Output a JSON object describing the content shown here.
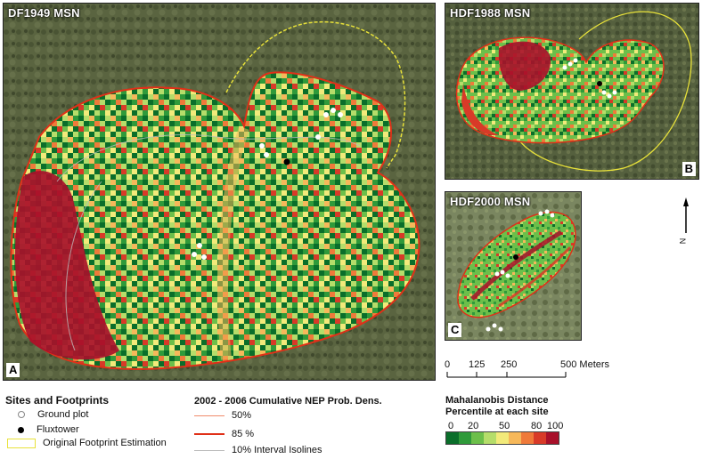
{
  "panels": {
    "a": {
      "title": "DF1949 MSN",
      "letter": "A"
    },
    "b": {
      "title": "HDF1988 MSN",
      "letter": "B"
    },
    "c": {
      "title": "HDF2000 MSN",
      "letter": "C"
    }
  },
  "north_label": "N",
  "scalebar": {
    "ticks": [
      "0",
      "125",
      "250",
      "500 Meters"
    ]
  },
  "legend_sites": {
    "title": "Sites and Footprints",
    "items": [
      "Ground plot",
      "Fluxtower",
      "Original Footprint Estimation"
    ]
  },
  "legend_nep": {
    "title": "2002 - 2006 Cumulative NEP Prob. Dens.",
    "items": [
      "50%",
      "85 %",
      "10% Interval Isolines"
    ]
  },
  "legend_mahal": {
    "title_line1": "Mahalanobis Distance",
    "title_line2": "Percentile at each site",
    "ticks": [
      "0",
      "20",
      "50",
      "80",
      "100"
    ],
    "colors": [
      "#0a6e2a",
      "#2f9a3a",
      "#6cbf4a",
      "#b5dd6a",
      "#f2ea7a",
      "#f6b85a",
      "#ef7a3a",
      "#d83a28",
      "#a8102a"
    ]
  },
  "colors": {
    "footprint_yellow": "#e8e23a",
    "line_50": "#f08a6a",
    "line_85": "#e03018",
    "isoline": "#bbbbbb"
  }
}
